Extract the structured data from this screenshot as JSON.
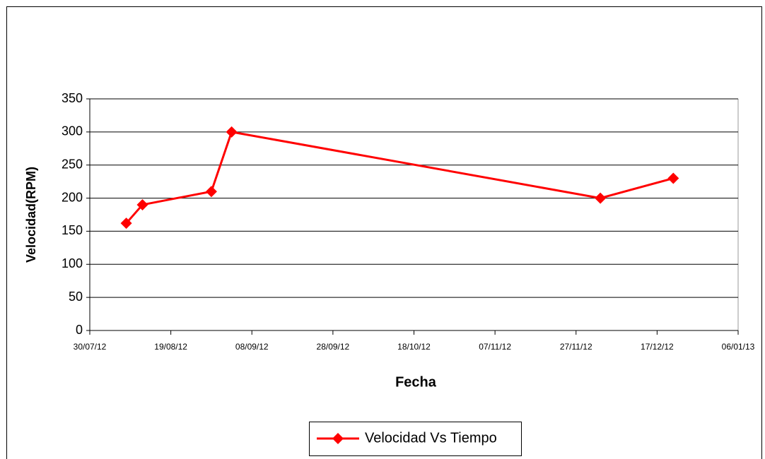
{
  "chart_data": {
    "type": "line",
    "x_label": "Fecha",
    "y_label": "Velocidad(RPM)",
    "x": [
      "08/08/12",
      "12/08/12",
      "29/08/12",
      "03/09/12",
      "03/12/12",
      "21/12/12"
    ],
    "series": [
      {
        "name": "Velocidad Vs Tiempo",
        "color": "#ff0000",
        "values": [
          162,
          190,
          210,
          300,
          200,
          230
        ]
      }
    ],
    "xlim": [
      "30/07/12",
      "06/01/13"
    ],
    "xticks": [
      "30/07/12",
      "19/08/12",
      "08/09/12",
      "28/09/12",
      "18/10/12",
      "07/11/12",
      "27/11/12",
      "17/12/12",
      "06/01/13"
    ],
    "ylim": [
      0,
      350
    ],
    "yticks": [
      0,
      50,
      100,
      150,
      200,
      250,
      300,
      350
    ],
    "grid": true,
    "legend": "bottom"
  }
}
